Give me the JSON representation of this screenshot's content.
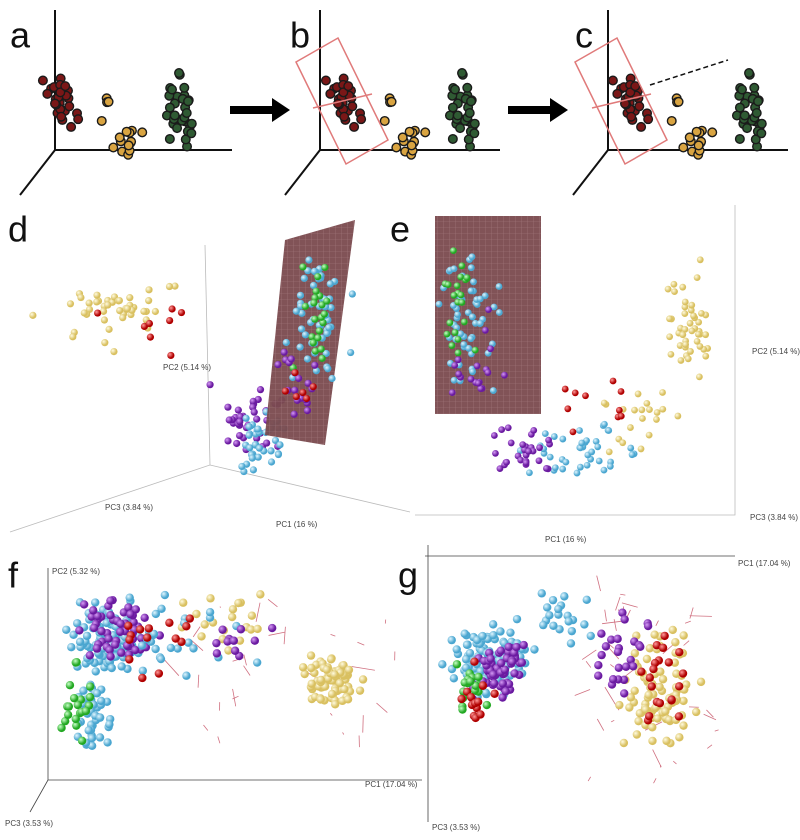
{
  "panels": [
    {
      "label": "a"
    },
    {
      "label": "b"
    },
    {
      "label": "c"
    },
    {
      "label": "d",
      "axis_labels": [
        "PC2 (5.14 %)",
        "PC3 (3.84 %)",
        "PC1 (16 %)"
      ]
    },
    {
      "label": "e",
      "axis_labels": [
        "PC2 (5.14 %)",
        "PC3 (3.84 %)",
        "PC1 (16 %)"
      ]
    },
    {
      "label": "f",
      "axis_labels": [
        "PC2 (5.32 %)",
        "PC1 (17.04 %)",
        "PC3 (3.53 %)"
      ]
    },
    {
      "label": "g",
      "axis_labels": [
        "PC1 (17.04 %)",
        "PC3 (3.53 %)"
      ]
    }
  ]
}
